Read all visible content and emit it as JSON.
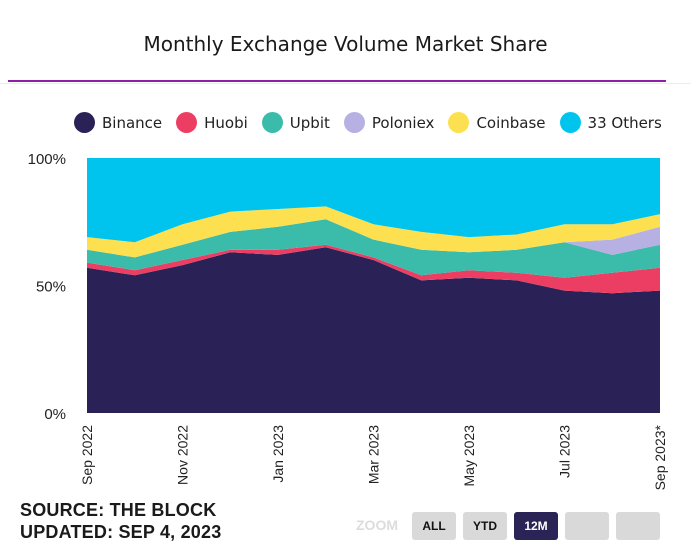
{
  "chart_data": {
    "type": "area",
    "stacked": true,
    "title": "Monthly Exchange Volume Market Share",
    "x": [
      "Sep 2022",
      "Oct 2022",
      "Nov 2022",
      "Dec 2022",
      "Jan 2023",
      "Feb 2023",
      "Mar 2023",
      "Apr 2023",
      "May 2023",
      "Jun 2023",
      "Jul 2023",
      "Aug 2023",
      "Sep 2023*"
    ],
    "x_tick_labels": [
      "Sep 2022",
      "Nov 2022",
      "Jan 2023",
      "Mar 2023",
      "May 2023",
      "Jul 2023",
      "Sep 2023*"
    ],
    "y_tick_labels": [
      "100%",
      "50%",
      "0%"
    ],
    "ylim": [
      0,
      100
    ],
    "legend_position": "top",
    "series": [
      {
        "name": "Binance",
        "color": "#2a2156",
        "values": [
          57,
          54,
          58,
          63,
          62,
          65,
          60,
          52,
          53,
          52,
          48,
          47,
          48
        ]
      },
      {
        "name": "Huobi",
        "color": "#ec3e63",
        "values": [
          2,
          2,
          2,
          1,
          2,
          1,
          1,
          2,
          3,
          3,
          5,
          8,
          9
        ]
      },
      {
        "name": "Upbit",
        "color": "#3bbcaa",
        "values": [
          5,
          5,
          6,
          7,
          9,
          10,
          7,
          10,
          7,
          9,
          14,
          7,
          9
        ]
      },
      {
        "name": "Poloniex",
        "color": "#b7b0e2",
        "values": [
          0,
          0,
          0,
          0,
          0,
          0,
          0,
          0,
          0,
          0,
          0,
          6,
          7
        ]
      },
      {
        "name": "Coinbase",
        "color": "#fde04f",
        "values": [
          5,
          6,
          8,
          8,
          7,
          5,
          6,
          7,
          6,
          6,
          7,
          6,
          5
        ]
      },
      {
        "name": "33 Others",
        "color": "#00c4ed",
        "values": [
          31,
          33,
          26,
          21,
          20,
          19,
          26,
          29,
          31,
          30,
          26,
          26,
          22
        ]
      }
    ]
  },
  "footer": {
    "source": "SOURCE: THE BLOCK",
    "updated": "UPDATED: SEP 4, 2023"
  },
  "zoom": {
    "label": "ZOOM",
    "buttons": [
      "ALL",
      "YTD",
      "12M",
      "",
      ""
    ],
    "active": "12M"
  }
}
